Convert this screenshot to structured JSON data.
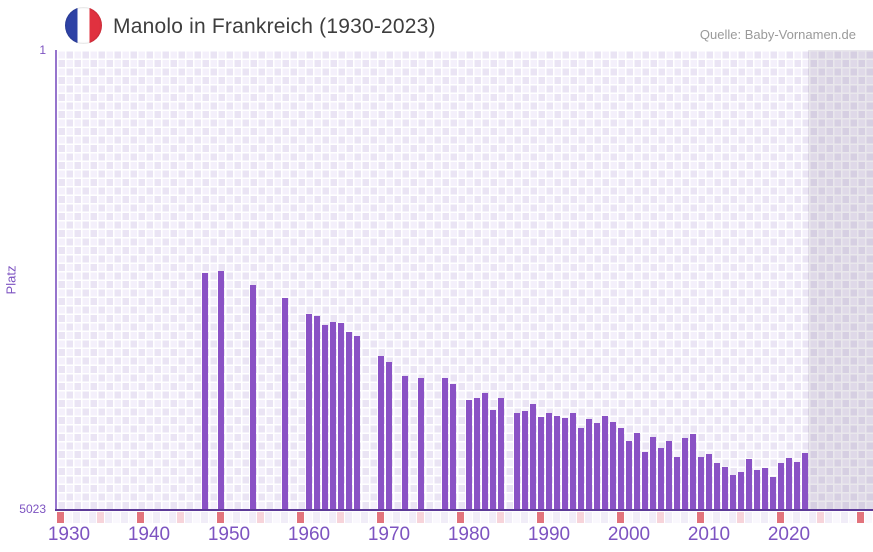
{
  "header": {
    "title": "Manolo in Frankreich (1930-2023)",
    "source": "Quelle: Baby-Vornamen.de",
    "flag_icon": "france-flag-icon"
  },
  "chart_data": {
    "type": "bar",
    "title": "Manolo in Frankreich (1930-2023)",
    "xlabel": "",
    "ylabel": "Platz",
    "y_axis": {
      "top_label": "1",
      "bottom_label": "5023",
      "min": 1,
      "max": 5023,
      "reversed": true,
      "note": "lower rank number = taller bar"
    },
    "x_axis": {
      "start_year": 1930,
      "end_year": 2023,
      "tick_labels": [
        "1930",
        "1940",
        "1950",
        "1960",
        "1970",
        "1980",
        "1990",
        "2000",
        "2010",
        "2020"
      ],
      "decade_marker_years": [
        1930,
        1940,
        1950,
        1960,
        1970,
        1980,
        1990,
        2000,
        2010,
        2020
      ],
      "no_data_shaded_from_year": 2023
    },
    "grid": "on",
    "legend": "none",
    "series": [
      {
        "name": "Platz",
        "years": [
          1947,
          1949,
          1953,
          1957,
          1960,
          1961,
          1962,
          1963,
          1964,
          1965,
          1966,
          1969,
          1970,
          1972,
          1974,
          1977,
          1978,
          1980,
          1981,
          1982,
          1983,
          1984,
          1986,
          1987,
          1988,
          1989,
          1990,
          1991,
          1992,
          1993,
          1994,
          1995,
          1996,
          1997,
          1998,
          1999,
          2000,
          2001,
          2002,
          2003,
          2004,
          2005,
          2006,
          2007,
          2008,
          2009,
          2010,
          2011,
          2012,
          2013,
          2014,
          2015,
          2016,
          2017,
          2018,
          2019,
          2020,
          2021,
          2022
        ],
        "ranks": [
          2440,
          2420,
          2572,
          2715,
          2890,
          2912,
          3010,
          2980,
          2988,
          3086,
          3130,
          3349,
          3415,
          3568,
          3590,
          3592,
          3658,
          3830,
          3808,
          3753,
          3940,
          3808,
          3972,
          3950,
          3875,
          4016,
          3972,
          4005,
          4027,
          3972,
          4136,
          4038,
          4081,
          4005,
          4070,
          4136,
          4278,
          4191,
          4398,
          4234,
          4355,
          4278,
          4453,
          4245,
          4201,
          4453,
          4420,
          4519,
          4562,
          4650,
          4617,
          4475,
          4595,
          4573,
          4672,
          4519,
          4464,
          4508,
          4409
        ]
      }
    ],
    "colors": {
      "bar": "#8a52c5",
      "axis_text": "#7d53c1",
      "title_text": "#3e3e3e",
      "source_text": "#9a9a9a",
      "axis_line_dark": "#5c3a97",
      "axis_line_light": "#9674cd",
      "plot_bg_light": "#f4f0fb",
      "plot_bg_dark": "#eae4f4",
      "decade_marker": "#e2737c",
      "half_decade_marker": "#f7d4da",
      "flag_blue": "#2e42a5",
      "flag_red": "#e0313f"
    }
  }
}
